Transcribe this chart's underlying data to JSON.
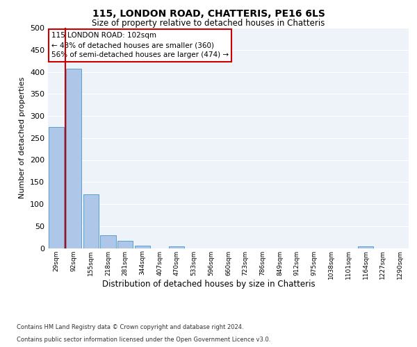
{
  "title": "115, LONDON ROAD, CHATTERIS, PE16 6LS",
  "subtitle": "Size of property relative to detached houses in Chatteris",
  "xlabel": "Distribution of detached houses by size in Chatteris",
  "ylabel": "Number of detached properties",
  "footer_line1": "Contains HM Land Registry data © Crown copyright and database right 2024.",
  "footer_line2": "Contains public sector information licensed under the Open Government Licence v3.0.",
  "bins": [
    "29sqm",
    "92sqm",
    "155sqm",
    "218sqm",
    "281sqm",
    "344sqm",
    "407sqm",
    "470sqm",
    "533sqm",
    "596sqm",
    "660sqm",
    "723sqm",
    "786sqm",
    "849sqm",
    "912sqm",
    "975sqm",
    "1038sqm",
    "1101sqm",
    "1164sqm",
    "1227sqm",
    "1290sqm"
  ],
  "values": [
    275,
    407,
    122,
    29,
    16,
    5,
    0,
    4,
    0,
    0,
    0,
    0,
    0,
    0,
    0,
    0,
    0,
    0,
    4,
    0,
    0
  ],
  "bar_color": "#aec6e8",
  "bar_edge_color": "#5a9fd4",
  "red_line_x": 0.5,
  "ylim": [
    0,
    500
  ],
  "yticks": [
    0,
    50,
    100,
    150,
    200,
    250,
    300,
    350,
    400,
    450,
    500
  ],
  "annotation_title": "115 LONDON ROAD: 102sqm",
  "annotation_line1": "← 43% of detached houses are smaller (360)",
  "annotation_line2": "56% of semi-detached houses are larger (474) →",
  "bg_color": "#eef2f9",
  "title_fontsize": 10,
  "subtitle_fontsize": 8.5,
  "ylabel_fontsize": 8,
  "xlabel_fontsize": 8.5,
  "footer_fontsize": 6,
  "annot_fontsize": 7.5
}
